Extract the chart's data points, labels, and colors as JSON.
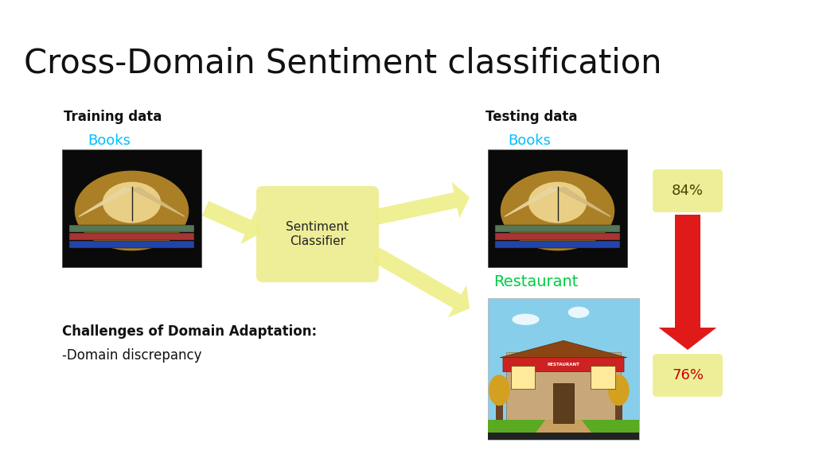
{
  "title": "Cross-Domain Sentiment classification",
  "title_fontsize": 30,
  "bg_color": "#ffffff",
  "training_label": "Training data",
  "testing_label": "Testing data",
  "books_label": "Books",
  "restaurant_label": "Restaurant",
  "classifier_label": "Sentiment\nClassifier",
  "challenges_title": "Challenges of Domain Adaptation:",
  "challenges_body": "-Domain discrepancy",
  "cyan_color": "#00BFFF",
  "green_label_color": "#00CC44",
  "yellow_box_color": "#EEEE99",
  "yellow_box_edge": "#CCCC66",
  "yellow_arrow_color": "#EEEE88",
  "red_arrow_color": "#DD0000",
  "percent_84": "84%",
  "percent_76": "76%",
  "percent_color_84": "#444400",
  "percent_color_76": "#CC0000",
  "book_dark": "#111111",
  "book_warm": "#C8952A"
}
